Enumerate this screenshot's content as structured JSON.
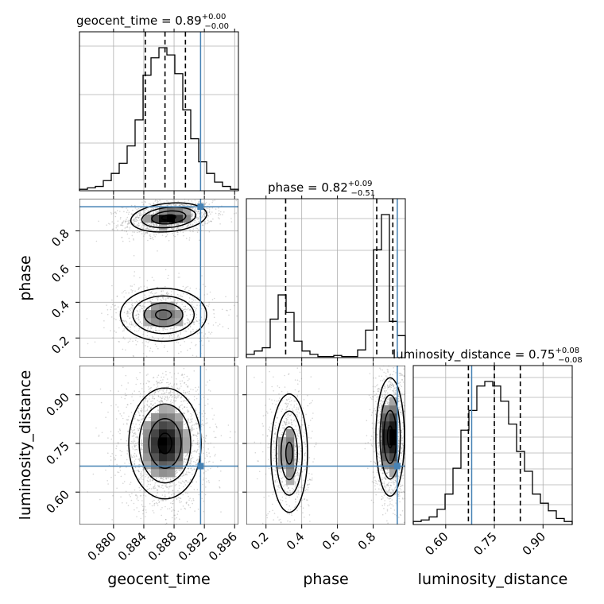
{
  "chart_data": {
    "type": "corner",
    "parameters": [
      "geocent_time",
      "phase",
      "luminosity_distance"
    ],
    "truths": {
      "geocent_time": 0.8915,
      "phase": 0.935,
      "luminosity_distance": 0.68
    },
    "ranges": {
      "geocent_time": [
        0.8755,
        0.8965
      ],
      "phase": [
        0.09,
        0.98
      ],
      "luminosity_distance": [
        0.5,
        0.99
      ]
    },
    "ticks": {
      "geocent_time": [
        0.88,
        0.884,
        0.888,
        0.892,
        0.896
      ],
      "phase": [
        0.2,
        0.4,
        0.6,
        0.8
      ],
      "luminosity_distance": [
        0.6,
        0.75,
        0.9
      ]
    },
    "tick_labels": {
      "geocent_time": [
        "0.880",
        "0.884",
        "0.888",
        "0.892",
        "0.896"
      ],
      "phase": [
        "0.2",
        "0.4",
        "0.6",
        "0.8"
      ],
      "luminosity_distance": [
        "0.60",
        "0.75",
        "0.90"
      ]
    },
    "titles": [
      {
        "param": "geocent_time",
        "prefix": "geocent_time = 0.89",
        "plus": "+0.00",
        "minus": "−0.00"
      },
      {
        "param": "phase",
        "prefix": "phase = 0.82",
        "plus": "+0.09",
        "minus": "−0.51"
      },
      {
        "param": "luminosity_distance",
        "prefix": "luminosity_distance = 0.75",
        "plus": "+0.08",
        "minus": "−0.08"
      }
    ],
    "quantile_lines": {
      "geocent_time": [
        0.8842,
        0.8868,
        0.8895
      ],
      "phase": [
        0.31,
        0.82,
        0.91
      ],
      "luminosity_distance": [
        0.67,
        0.75,
        0.83
      ]
    },
    "histograms": {
      "geocent_time": {
        "edges_start": 0.8755,
        "bin_width": 0.00105,
        "counts": [
          1,
          2,
          3,
          7,
          12,
          19,
          31,
          49,
          80,
          92,
          99,
          94,
          81,
          56,
          36,
          20,
          12,
          6,
          3,
          1
        ]
      },
      "phase": {
        "edges_start": 0.09,
        "bin_width": 0.0445,
        "counts": [
          3,
          6,
          9,
          35,
          57,
          41,
          15,
          6,
          3,
          1,
          1,
          2,
          1,
          1,
          7,
          25,
          98,
          130,
          33,
          20
        ]
      },
      "luminosity_distance": {
        "edges_start": 0.5,
        "bin_width": 0.0245,
        "counts": [
          2,
          3,
          5,
          10,
          20,
          37,
          62,
          75,
          91,
          94,
          91,
          81,
          66,
          48,
          35,
          20,
          14,
          9,
          4,
          2
        ]
      }
    },
    "grid": true
  }
}
